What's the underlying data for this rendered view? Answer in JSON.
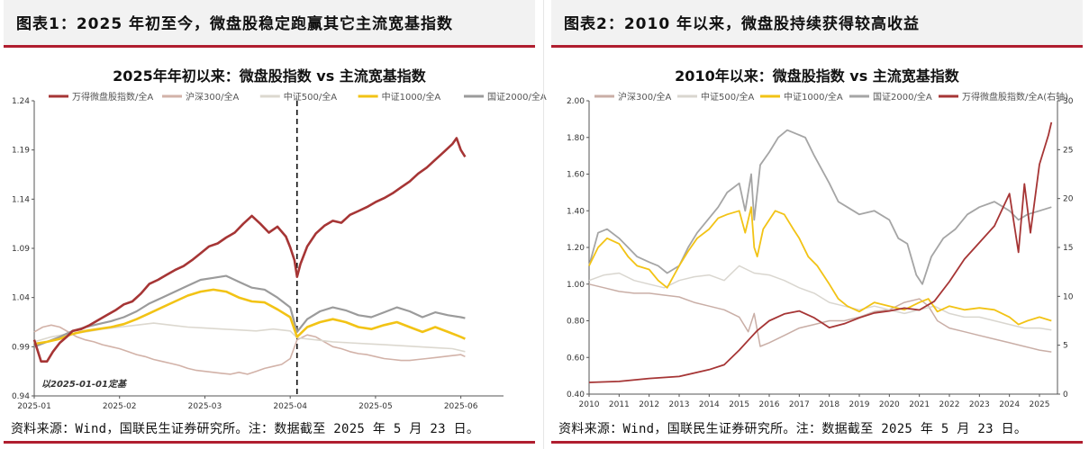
{
  "colors": {
    "accent": "#b01e2f",
    "header_bg": "#f2f2f2"
  },
  "left": {
    "figure_title": "图表1：2025 年初至今，微盘股稳定跑赢其它主流宽基指数",
    "source": "资料来源：Wind，国联民生证券研究所。注：数据截至 2025 年 5 月 23 日。",
    "chart_data": {
      "type": "line",
      "title": "2025年年初以来：微盘股指数 vs 主流宽基指数",
      "annotation": "以2025-01-01定基",
      "ylim": [
        0.94,
        1.24
      ],
      "yticks": [
        "0.94",
        "0.99",
        "1.04",
        "1.09",
        "1.14",
        "1.19",
        "1.24"
      ],
      "xlim": [
        0,
        5.5
      ],
      "xticks": [
        "2025-01",
        "2025-02",
        "2025-03",
        "2025-04",
        "2025-05",
        "2025-06"
      ],
      "vline_x": 3.08,
      "legend_position": "top",
      "series": [
        {
          "name": "万得微盘股指数/全A",
          "color": "#a63535",
          "width": 2.6,
          "x": [
            0,
            0.08,
            0.15,
            0.22,
            0.3,
            0.38,
            0.45,
            0.55,
            0.65,
            0.75,
            0.85,
            0.95,
            1.05,
            1.15,
            1.25,
            1.35,
            1.45,
            1.55,
            1.65,
            1.75,
            1.85,
            1.95,
            2.05,
            2.15,
            2.25,
            2.35,
            2.45,
            2.55,
            2.65,
            2.75,
            2.85,
            2.95,
            3.0,
            3.05,
            3.08,
            3.12,
            3.2,
            3.3,
            3.4,
            3.5,
            3.6,
            3.7,
            3.8,
            3.9,
            4.0,
            4.1,
            4.2,
            4.3,
            4.4,
            4.5,
            4.6,
            4.7,
            4.8,
            4.9,
            4.95,
            5.0,
            5.05
          ],
          "y": [
            0.997,
            0.975,
            0.975,
            0.985,
            0.994,
            1.0,
            1.006,
            1.008,
            1.012,
            1.017,
            1.022,
            1.027,
            1.033,
            1.036,
            1.044,
            1.054,
            1.058,
            1.063,
            1.068,
            1.072,
            1.078,
            1.085,
            1.092,
            1.095,
            1.101,
            1.106,
            1.115,
            1.123,
            1.115,
            1.106,
            1.112,
            1.102,
            1.091,
            1.078,
            1.061,
            1.074,
            1.092,
            1.105,
            1.113,
            1.118,
            1.116,
            1.124,
            1.128,
            1.132,
            1.137,
            1.141,
            1.146,
            1.152,
            1.158,
            1.166,
            1.172,
            1.18,
            1.188,
            1.196,
            1.202,
            1.19,
            1.183
          ]
        },
        {
          "name": "沪深300/全A",
          "color": "#d2b2a8",
          "width": 1.6,
          "x": [
            0,
            0.1,
            0.2,
            0.3,
            0.4,
            0.5,
            0.6,
            0.7,
            0.8,
            0.9,
            1.0,
            1.1,
            1.2,
            1.3,
            1.4,
            1.5,
            1.6,
            1.7,
            1.8,
            1.9,
            2.0,
            2.1,
            2.2,
            2.3,
            2.4,
            2.5,
            2.6,
            2.7,
            2.8,
            2.9,
            3.0,
            3.08,
            3.2,
            3.3,
            3.4,
            3.5,
            3.6,
            3.7,
            3.8,
            3.9,
            4.0,
            4.1,
            4.2,
            4.3,
            4.4,
            4.5,
            4.6,
            4.7,
            4.8,
            4.9,
            5.0,
            5.05
          ],
          "y": [
            1.005,
            1.01,
            1.012,
            1.01,
            1.005,
            1.0,
            0.997,
            0.995,
            0.992,
            0.99,
            0.988,
            0.985,
            0.982,
            0.98,
            0.977,
            0.975,
            0.973,
            0.971,
            0.968,
            0.966,
            0.965,
            0.964,
            0.963,
            0.962,
            0.964,
            0.962,
            0.965,
            0.968,
            0.97,
            0.972,
            0.978,
            0.997,
            1.002,
            1.0,
            0.995,
            0.99,
            0.988,
            0.985,
            0.983,
            0.982,
            0.98,
            0.978,
            0.977,
            0.976,
            0.976,
            0.977,
            0.978,
            0.979,
            0.98,
            0.981,
            0.982,
            0.98
          ]
        },
        {
          "name": "中证500/全A",
          "color": "#dcd8cf",
          "width": 1.6,
          "x": [
            0,
            0.2,
            0.4,
            0.6,
            0.8,
            1.0,
            1.2,
            1.4,
            1.6,
            1.8,
            2.0,
            2.2,
            2.4,
            2.6,
            2.8,
            3.0,
            3.08,
            3.3,
            3.5,
            3.7,
            3.9,
            4.1,
            4.3,
            4.5,
            4.7,
            4.9,
            5.05
          ],
          "y": [
            0.995,
            1.0,
            1.003,
            1.005,
            1.008,
            1.01,
            1.012,
            1.014,
            1.012,
            1.01,
            1.009,
            1.008,
            1.007,
            1.006,
            1.008,
            1.006,
            0.999,
            0.997,
            0.995,
            0.994,
            0.993,
            0.992,
            0.991,
            0.99,
            0.989,
            0.988,
            0.985
          ]
        },
        {
          "name": "中证1000/全A",
          "color": "#f2c315",
          "width": 2.6,
          "x": [
            0,
            0.15,
            0.3,
            0.45,
            0.6,
            0.75,
            0.9,
            1.05,
            1.2,
            1.35,
            1.5,
            1.65,
            1.8,
            1.95,
            2.1,
            2.25,
            2.4,
            2.55,
            2.7,
            2.85,
            3.0,
            3.08,
            3.2,
            3.35,
            3.5,
            3.65,
            3.8,
            3.95,
            4.1,
            4.25,
            4.4,
            4.55,
            4.7,
            4.85,
            5.0,
            5.05
          ],
          "y": [
            0.993,
            0.995,
            0.998,
            1.003,
            1.006,
            1.008,
            1.01,
            1.013,
            1.018,
            1.024,
            1.03,
            1.036,
            1.042,
            1.046,
            1.048,
            1.046,
            1.04,
            1.036,
            1.035,
            1.028,
            1.02,
            1.0,
            1.01,
            1.015,
            1.018,
            1.015,
            1.01,
            1.008,
            1.012,
            1.015,
            1.01,
            1.005,
            1.01,
            1.005,
            1.0,
            0.998
          ]
        },
        {
          "name": "国证2000/全A",
          "color": "#9b9b9b",
          "width": 2.2,
          "x": [
            0,
            0.15,
            0.3,
            0.45,
            0.6,
            0.75,
            0.9,
            1.05,
            1.2,
            1.35,
            1.5,
            1.65,
            1.8,
            1.95,
            2.1,
            2.25,
            2.4,
            2.55,
            2.7,
            2.85,
            3.0,
            3.08,
            3.2,
            3.35,
            3.5,
            3.65,
            3.8,
            3.95,
            4.1,
            4.25,
            4.4,
            4.55,
            4.7,
            4.85,
            5.0,
            5.05
          ],
          "y": [
            0.99,
            0.995,
            1.0,
            1.006,
            1.01,
            1.013,
            1.016,
            1.02,
            1.026,
            1.034,
            1.04,
            1.046,
            1.052,
            1.058,
            1.06,
            1.062,
            1.056,
            1.05,
            1.048,
            1.04,
            1.03,
            1.005,
            1.018,
            1.026,
            1.03,
            1.027,
            1.022,
            1.02,
            1.025,
            1.03,
            1.026,
            1.02,
            1.025,
            1.022,
            1.02,
            1.019
          ]
        }
      ]
    }
  },
  "right": {
    "figure_title": "图表2：2010 年以来，微盘股持续获得较高收益",
    "source": "资料来源：Wind，国联民生证券研究所。注：数据截至 2025 年 5 月 23 日。",
    "chart_data": {
      "type": "line",
      "title": "2010年以来：微盘股指数 vs 主流宽基指数",
      "ylim": [
        0.4,
        2.0
      ],
      "yticks": [
        "0.40",
        "0.60",
        "0.80",
        "1.00",
        "1.20",
        "1.40",
        "1.60",
        "1.80",
        "2.00"
      ],
      "y2lim": [
        0,
        30
      ],
      "y2ticks": [
        "0",
        "5",
        "10",
        "15",
        "20",
        "25",
        "30"
      ],
      "xlim": [
        2010,
        2025.6
      ],
      "xticks": [
        "2010",
        "2011",
        "2012",
        "2013",
        "2014",
        "2015",
        "2016",
        "2017",
        "2018",
        "2019",
        "2020",
        "2021",
        "2022",
        "2023",
        "2024",
        "2025"
      ],
      "legend_position": "top",
      "series": [
        {
          "name": "沪深300/全A",
          "color": "#c9aea6",
          "width": 1.5,
          "axis": "left",
          "x": [
            2010,
            2010.5,
            2011,
            2011.5,
            2012,
            2012.5,
            2013,
            2013.5,
            2014,
            2014.5,
            2015,
            2015.3,
            2015.5,
            2015.7,
            2016,
            2016.5,
            2017,
            2017.5,
            2018,
            2018.5,
            2019,
            2019.5,
            2020,
            2020.5,
            2021,
            2021.3,
            2021.6,
            2022,
            2022.5,
            2023,
            2023.5,
            2024,
            2024.5,
            2025,
            2025.4
          ],
          "y": [
            1.0,
            0.98,
            0.96,
            0.95,
            0.95,
            0.94,
            0.93,
            0.9,
            0.88,
            0.86,
            0.82,
            0.74,
            0.84,
            0.66,
            0.68,
            0.72,
            0.76,
            0.78,
            0.8,
            0.8,
            0.82,
            0.85,
            0.86,
            0.9,
            0.92,
            0.88,
            0.8,
            0.76,
            0.74,
            0.72,
            0.7,
            0.68,
            0.66,
            0.64,
            0.63
          ]
        },
        {
          "name": "中证500/全A",
          "color": "#d9d6cf",
          "width": 1.5,
          "axis": "left",
          "x": [
            2010,
            2010.5,
            2011,
            2011.5,
            2012,
            2012.5,
            2013,
            2013.5,
            2014,
            2014.5,
            2015,
            2015.5,
            2016,
            2016.5,
            2017,
            2017.5,
            2018,
            2018.5,
            2019,
            2019.5,
            2020,
            2020.5,
            2021,
            2021.5,
            2022,
            2022.5,
            2023,
            2023.5,
            2024,
            2024.5,
            2025,
            2025.4
          ],
          "y": [
            1.02,
            1.05,
            1.06,
            1.02,
            1.0,
            0.98,
            1.02,
            1.04,
            1.05,
            1.02,
            1.1,
            1.06,
            1.05,
            1.02,
            0.98,
            0.95,
            0.9,
            0.88,
            0.86,
            0.88,
            0.86,
            0.84,
            0.86,
            0.88,
            0.84,
            0.82,
            0.82,
            0.8,
            0.78,
            0.76,
            0.76,
            0.75
          ]
        },
        {
          "name": "中证1000/全A",
          "color": "#f2c315",
          "width": 1.8,
          "axis": "left",
          "x": [
            2010,
            2010.3,
            2010.6,
            2011,
            2011.3,
            2011.6,
            2012,
            2012.3,
            2012.6,
            2013,
            2013.3,
            2013.6,
            2014,
            2014.3,
            2014.6,
            2015,
            2015.2,
            2015.4,
            2015.5,
            2015.6,
            2015.8,
            2016,
            2016.2,
            2016.5,
            2016.8,
            2017,
            2017.3,
            2017.6,
            2018,
            2018.3,
            2018.6,
            2019,
            2019.5,
            2020,
            2020.5,
            2021,
            2021.3,
            2021.6,
            2022,
            2022.5,
            2023,
            2023.5,
            2024,
            2024.3,
            2024.6,
            2025,
            2025.4
          ],
          "y": [
            1.1,
            1.2,
            1.25,
            1.22,
            1.15,
            1.1,
            1.08,
            1.02,
            0.98,
            1.1,
            1.18,
            1.25,
            1.3,
            1.36,
            1.38,
            1.4,
            1.28,
            1.42,
            1.2,
            1.15,
            1.3,
            1.35,
            1.4,
            1.38,
            1.3,
            1.25,
            1.15,
            1.1,
            1.0,
            0.92,
            0.88,
            0.85,
            0.9,
            0.88,
            0.86,
            0.9,
            0.92,
            0.85,
            0.88,
            0.86,
            0.87,
            0.86,
            0.82,
            0.78,
            0.8,
            0.82,
            0.8
          ]
        },
        {
          "name": "国证2000/全A",
          "color": "#a5a5a5",
          "width": 1.8,
          "axis": "left",
          "x": [
            2010,
            2010.3,
            2010.6,
            2011,
            2011.3,
            2011.6,
            2012,
            2012.3,
            2012.6,
            2013,
            2013.3,
            2013.6,
            2014,
            2014.3,
            2014.6,
            2015,
            2015.2,
            2015.4,
            2015.5,
            2015.7,
            2016,
            2016.3,
            2016.6,
            2016.9,
            2017.2,
            2017.5,
            2018,
            2018.3,
            2018.6,
            2019,
            2019.5,
            2020,
            2020.3,
            2020.6,
            2020.9,
            2021.1,
            2021.4,
            2021.8,
            2022.2,
            2022.6,
            2023,
            2023.5,
            2024,
            2024.3,
            2024.6,
            2025,
            2025.4
          ],
          "y": [
            1.1,
            1.28,
            1.3,
            1.25,
            1.2,
            1.15,
            1.12,
            1.1,
            1.06,
            1.1,
            1.2,
            1.28,
            1.36,
            1.42,
            1.5,
            1.55,
            1.4,
            1.6,
            1.35,
            1.65,
            1.72,
            1.8,
            1.84,
            1.82,
            1.8,
            1.7,
            1.55,
            1.45,
            1.42,
            1.38,
            1.4,
            1.35,
            1.25,
            1.22,
            1.05,
            1.0,
            1.15,
            1.25,
            1.3,
            1.38,
            1.42,
            1.45,
            1.4,
            1.35,
            1.38,
            1.4,
            1.42
          ]
        },
        {
          "name": "万得微盘股指数/全A(右轴)",
          "color": "#a63535",
          "width": 1.8,
          "axis": "right",
          "x": [
            2010,
            2011,
            2012,
            2013,
            2014,
            2014.5,
            2015,
            2015.3,
            2015.6,
            2016,
            2016.5,
            2017,
            2017.5,
            2018,
            2018.5,
            2019,
            2019.5,
            2020,
            2020.5,
            2021,
            2021.5,
            2022,
            2022.5,
            2023,
            2023.5,
            2024,
            2024.3,
            2024.5,
            2024.7,
            2025,
            2025.3,
            2025.4
          ],
          "y": [
            1.2,
            1.3,
            1.6,
            1.8,
            2.5,
            3.0,
            4.5,
            5.5,
            6.5,
            7.5,
            8.2,
            8.5,
            7.8,
            6.8,
            7.2,
            7.8,
            8.3,
            8.5,
            8.8,
            8.6,
            9.5,
            11.5,
            13.8,
            15.5,
            17.2,
            20.5,
            14.5,
            21.5,
            16.5,
            23.5,
            26.5,
            27.8
          ]
        }
      ]
    }
  }
}
